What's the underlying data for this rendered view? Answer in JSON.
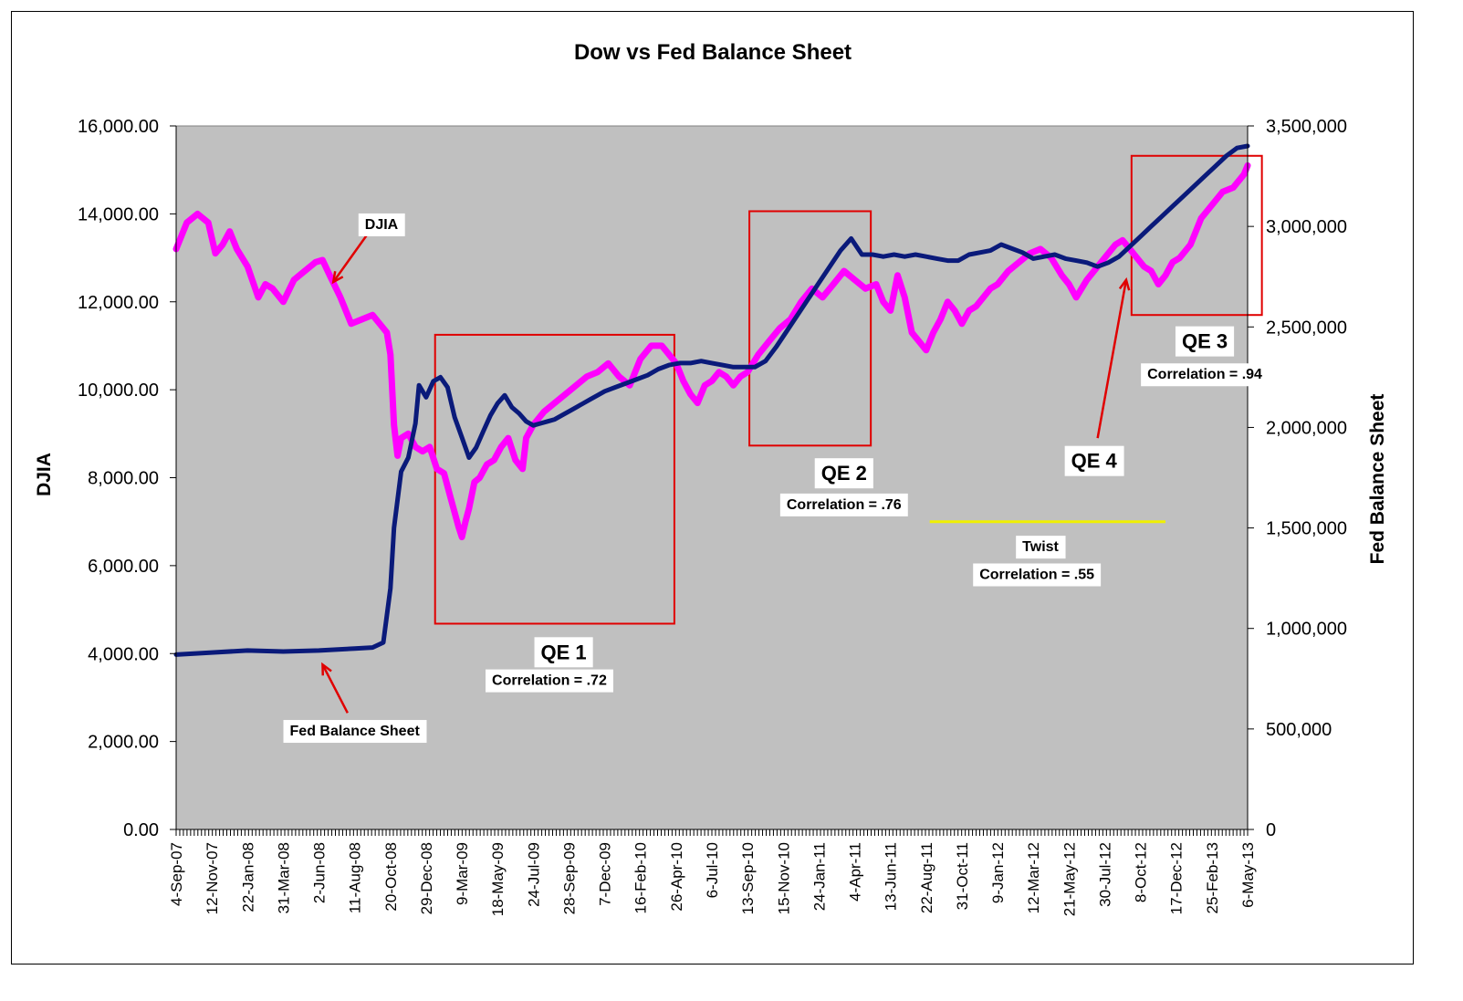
{
  "chart_data": {
    "type": "line",
    "title": "Dow vs Fed Balance Sheet",
    "ylabel": "DJIA",
    "y2label": "Fed Balance Sheet",
    "ylim": [
      0,
      16000
    ],
    "y2lim": [
      0,
      3500000
    ],
    "yticks": [
      "16,000.00",
      "14,000.00",
      "12,000.00",
      "10,000.00",
      "8,000.00",
      "6,000.00",
      "4,000.00",
      "2,000.00",
      "0.00"
    ],
    "y2ticks": [
      "3,500,000",
      "3,000,000",
      "2,500,000",
      "2,000,000",
      "1,500,000",
      "1,000,000",
      "500,000",
      "0"
    ],
    "x_tick_labels": [
      "4-Sep-07",
      "12-Nov-07",
      "22-Jan-08",
      "31-Mar-08",
      "2-Jun-08",
      "11-Aug-08",
      "20-Oct-08",
      "29-Dec-08",
      "9-Mar-09",
      "18-May-09",
      "24-Jul-09",
      "28-Sep-09",
      "7-Dec-09",
      "16-Feb-10",
      "26-Apr-10",
      "6-Jul-10",
      "13-Sep-10",
      "15-Nov-10",
      "24-Jan-11",
      "4-Apr-11",
      "13-Jun-11",
      "22-Aug-11",
      "31-Oct-11",
      "9-Jan-12",
      "12-Mar-12",
      "21-May-12",
      "30-Jul-12",
      "8-Oct-12",
      "17-Dec-12",
      "25-Feb-13",
      "6-May-13"
    ],
    "x_range": [
      0,
      30
    ],
    "series": [
      {
        "name": "DJIA",
        "axis": "left",
        "color": "#ff00ff",
        "x": [
          0,
          0.3,
          0.6,
          0.9,
          1.1,
          1.3,
          1.5,
          1.7,
          2.0,
          2.3,
          2.5,
          2.7,
          3.0,
          3.3,
          3.6,
          3.9,
          4.1,
          4.3,
          4.6,
          4.9,
          5.2,
          5.5,
          5.8,
          5.9,
          6.0,
          6.1,
          6.2,
          6.3,
          6.5,
          6.7,
          6.9,
          7.1,
          7.3,
          7.5,
          7.7,
          7.9,
          8.0,
          8.1,
          8.2,
          8.35,
          8.5,
          8.7,
          8.9,
          9.1,
          9.3,
          9.5,
          9.7,
          9.8,
          10.0,
          10.3,
          10.6,
          10.9,
          11.2,
          11.5,
          11.8,
          12.1,
          12.4,
          12.7,
          13.0,
          13.3,
          13.6,
          13.9,
          14.0,
          14.2,
          14.4,
          14.6,
          14.8,
          15.0,
          15.2,
          15.4,
          15.6,
          15.8,
          16.0,
          16.3,
          16.6,
          16.9,
          17.2,
          17.5,
          17.8,
          18.1,
          18.4,
          18.7,
          19.0,
          19.3,
          19.6,
          19.8,
          20.0,
          20.2,
          20.4,
          20.6,
          20.8,
          21.0,
          21.2,
          21.4,
          21.6,
          21.8,
          22.0,
          22.2,
          22.4,
          22.6,
          22.8,
          23.0,
          23.3,
          23.6,
          23.9,
          24.2,
          24.5,
          24.8,
          25.0,
          25.2,
          25.5,
          25.8,
          26.1,
          26.3,
          26.5,
          26.7,
          26.9,
          27.1,
          27.3,
          27.5,
          27.7,
          27.9,
          28.1,
          28.4,
          28.7,
          29.0,
          29.3,
          29.6,
          29.9,
          30.0
        ],
        "y": [
          13200,
          13800,
          14000,
          13800,
          13100,
          13300,
          13600,
          13200,
          12800,
          12100,
          12400,
          12300,
          12000,
          12500,
          12700,
          12900,
          12950,
          12600,
          12100,
          11500,
          11600,
          11700,
          11400,
          11300,
          10800,
          9200,
          8500,
          8900,
          9000,
          8700,
          8600,
          8700,
          8200,
          8100,
          7500,
          6900,
          6650,
          7000,
          7300,
          7900,
          8000,
          8300,
          8400,
          8700,
          8900,
          8400,
          8200,
          8900,
          9200,
          9500,
          9700,
          9900,
          10100,
          10300,
          10400,
          10600,
          10300,
          10100,
          10700,
          11000,
          11000,
          10700,
          10600,
          10200,
          9900,
          9700,
          10100,
          10200,
          10400,
          10300,
          10100,
          10300,
          10400,
          10800,
          11100,
          11400,
          11600,
          12000,
          12300,
          12100,
          12400,
          12700,
          12500,
          12300,
          12400,
          12000,
          11800,
          12600,
          12100,
          11300,
          11100,
          10900,
          11300,
          11600,
          12000,
          11800,
          11500,
          11800,
          11900,
          12100,
          12300,
          12400,
          12700,
          12900,
          13100,
          13200,
          13000,
          12600,
          12400,
          12100,
          12500,
          12800,
          13100,
          13300,
          13400,
          13200,
          13000,
          12800,
          12700,
          12400,
          12600,
          12900,
          13000,
          13300,
          13900,
          14200,
          14500,
          14600,
          14900,
          15100
        ],
        "width": 7
      },
      {
        "name": "Fed Balance Sheet",
        "axis": "right",
        "color": "#0a1a7a",
        "x": [
          0,
          1,
          2,
          3,
          4,
          5,
          5.5,
          5.8,
          6.0,
          6.1,
          6.3,
          6.5,
          6.7,
          6.8,
          7.0,
          7.2,
          7.4,
          7.6,
          7.8,
          8.0,
          8.2,
          8.4,
          8.6,
          8.8,
          9.0,
          9.2,
          9.4,
          9.6,
          9.8,
          10.0,
          10.2,
          10.4,
          10.6,
          10.8,
          11.0,
          11.2,
          11.4,
          11.6,
          11.8,
          12.0,
          12.3,
          12.6,
          12.9,
          13.2,
          13.5,
          13.8,
          14.1,
          14.4,
          14.7,
          15.0,
          15.3,
          15.6,
          15.9,
          16.2,
          16.5,
          16.8,
          17.1,
          17.4,
          17.7,
          18.0,
          18.3,
          18.6,
          18.9,
          19.2,
          19.5,
          19.8,
          20.1,
          20.4,
          20.7,
          21.0,
          21.3,
          21.6,
          21.9,
          22.2,
          22.5,
          22.8,
          23.1,
          23.4,
          23.7,
          24.0,
          24.3,
          24.6,
          24.9,
          25.2,
          25.5,
          25.8,
          26.1,
          26.4,
          26.7,
          27.0,
          27.3,
          27.6,
          27.9,
          28.2,
          28.5,
          28.8,
          29.1,
          29.4,
          29.7,
          30.0
        ],
        "y": [
          870000,
          880000,
          890000,
          885000,
          890000,
          900000,
          905000,
          930000,
          1200000,
          1500000,
          1780000,
          1850000,
          2020000,
          2210000,
          2150000,
          2230000,
          2250000,
          2200000,
          2050000,
          1950000,
          1850000,
          1900000,
          1980000,
          2060000,
          2120000,
          2160000,
          2100000,
          2070000,
          2030000,
          2010000,
          2020000,
          2030000,
          2040000,
          2060000,
          2080000,
          2100000,
          2120000,
          2140000,
          2160000,
          2180000,
          2200000,
          2220000,
          2240000,
          2260000,
          2290000,
          2310000,
          2320000,
          2320000,
          2330000,
          2320000,
          2310000,
          2300000,
          2300000,
          2300000,
          2330000,
          2400000,
          2480000,
          2560000,
          2640000,
          2720000,
          2800000,
          2880000,
          2940000,
          2860000,
          2860000,
          2850000,
          2860000,
          2850000,
          2860000,
          2850000,
          2840000,
          2830000,
          2830000,
          2860000,
          2870000,
          2880000,
          2910000,
          2890000,
          2870000,
          2840000,
          2850000,
          2860000,
          2840000,
          2830000,
          2820000,
          2800000,
          2820000,
          2850000,
          2900000,
          2950000,
          3000000,
          3050000,
          3100000,
          3150000,
          3200000,
          3250000,
          3300000,
          3350000,
          3390000,
          3400000
        ],
        "width": 5
      }
    ],
    "annotations": [
      {
        "type": "rect",
        "x0": 7.25,
        "x1": 13.95,
        "y0": 4680,
        "y1": 11250,
        "color": "#e00000"
      },
      {
        "type": "rect",
        "x0": 16.05,
        "x1": 19.45,
        "y0": 8730,
        "y1": 14060,
        "color": "#e00000"
      },
      {
        "type": "rect",
        "x0": 26.75,
        "x1": 30.4,
        "y0": 11700,
        "y1": 15320,
        "color": "#e00000"
      },
      {
        "type": "line",
        "x0": 21.1,
        "x1": 27.7,
        "y0": 7000,
        "y1": 7000,
        "color": "#f0f000"
      },
      {
        "type": "arrow",
        "x0": 5.5,
        "y0": 13700,
        "x1": 4.4,
        "y1": 12450,
        "color": "#e00000"
      },
      {
        "type": "arrow",
        "x0": 4.8,
        "y0": 2650,
        "x1": 4.1,
        "y1": 3750,
        "color": "#e00000"
      },
      {
        "type": "arrow",
        "x0": 25.8,
        "y0": 8900,
        "x1": 26.6,
        "y1": 12500,
        "color": "#e00000"
      }
    ],
    "labels": [
      {
        "text": "DJIA",
        "x": 5.75,
        "y": 13750,
        "kind": "box"
      },
      {
        "text": "Fed Balance Sheet",
        "x": 5.0,
        "y": 2230,
        "kind": "box"
      },
      {
        "text": "QE 1",
        "x": 10.85,
        "y": 4030,
        "kind": "qe"
      },
      {
        "text": "Correlation = .72",
        "x": 10.45,
        "y": 3380,
        "kind": "box"
      },
      {
        "text": "QE 2",
        "x": 18.7,
        "y": 8100,
        "kind": "qe"
      },
      {
        "text": "Correlation = .76",
        "x": 18.7,
        "y": 7380,
        "kind": "box"
      },
      {
        "text": "QE 3",
        "x": 28.8,
        "y": 11100,
        "kind": "qe"
      },
      {
        "text": "Correlation = .94",
        "x": 28.8,
        "y": 10340,
        "kind": "box"
      },
      {
        "text": "QE 4",
        "x": 25.7,
        "y": 8380,
        "kind": "qe"
      },
      {
        "text": "Twist",
        "x": 24.2,
        "y": 6420,
        "kind": "box"
      },
      {
        "text": "Correlation = .55",
        "x": 24.1,
        "y": 5790,
        "kind": "box"
      }
    ],
    "grid": false,
    "legend": "none",
    "plot_background": "#c0c0c0"
  }
}
